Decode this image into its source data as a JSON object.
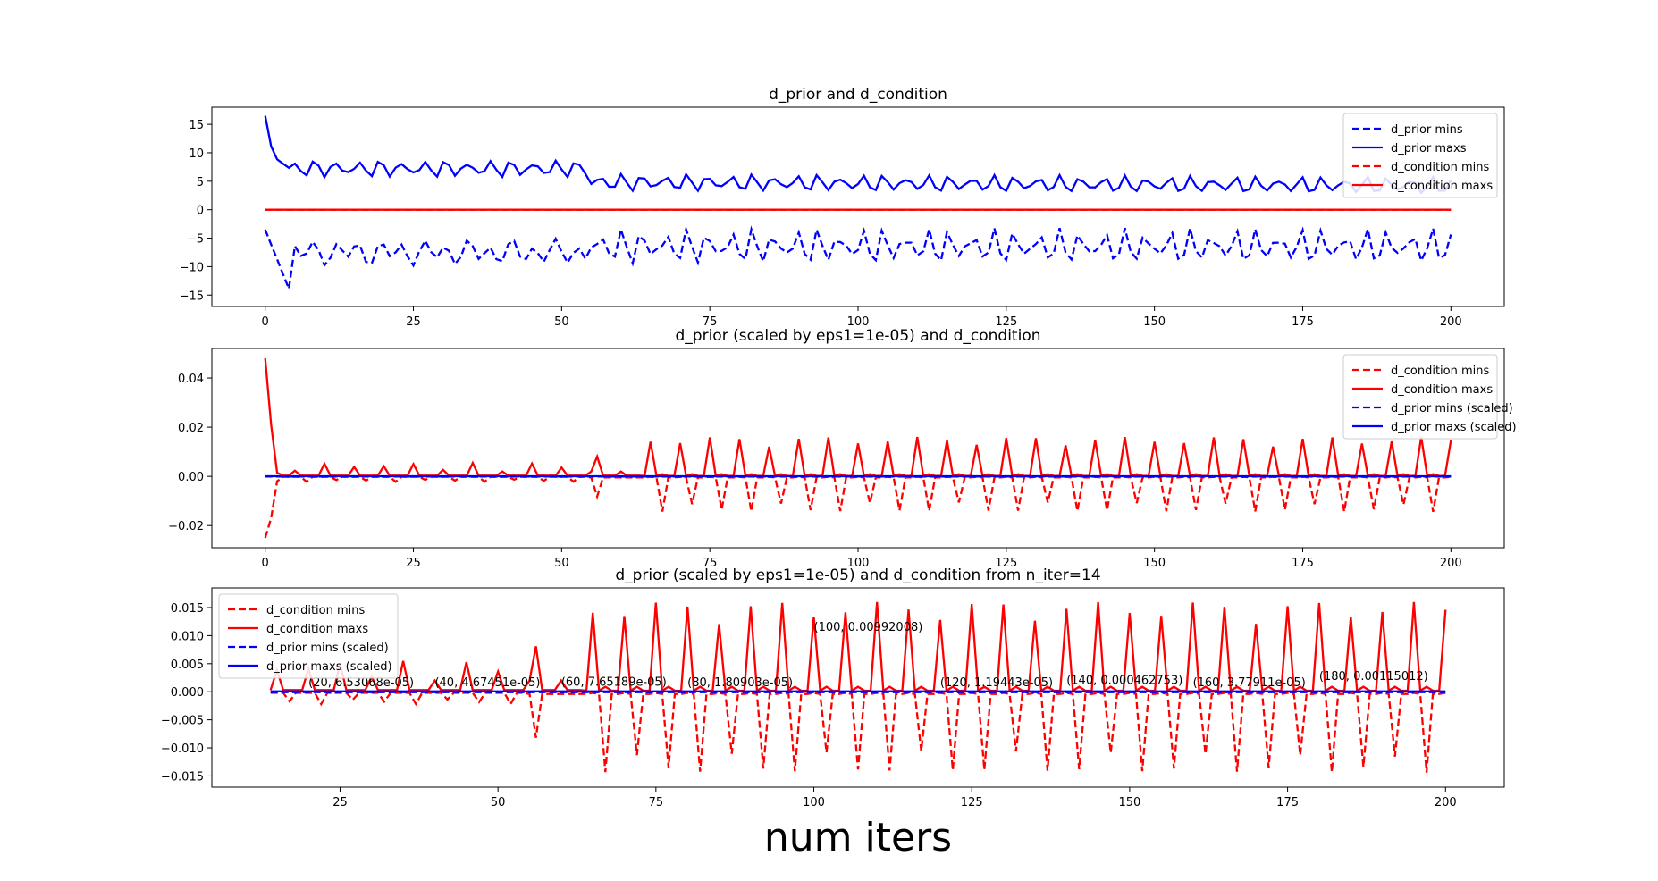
{
  "figure": {
    "xlabel": "num iters"
  },
  "chart_data": [
    {
      "type": "line",
      "title": "d_prior and d_condition",
      "xlim": [
        -9,
        209
      ],
      "ylim": [
        -17,
        18
      ],
      "xticks": [
        0,
        25,
        50,
        75,
        100,
        125,
        150,
        175,
        200
      ],
      "yticks": [
        -15,
        -10,
        -5,
        0,
        5,
        10,
        15
      ],
      "ytick_labels": [
        "−15",
        "−10",
        "−5",
        "0",
        "5",
        "10",
        "15"
      ],
      "legend": "upper-right",
      "series": [
        {
          "name": "d_prior mins",
          "color": "#0000ff",
          "dashed": true,
          "gen": "prior_min"
        },
        {
          "name": "d_prior maxs",
          "color": "#0000ff",
          "dashed": false,
          "gen": "prior_max"
        },
        {
          "name": "d_condition mins",
          "color": "#ff0000",
          "dashed": true,
          "gen": "zero"
        },
        {
          "name": "d_condition maxs",
          "color": "#ff0000",
          "dashed": false,
          "gen": "zero"
        }
      ],
      "annotations": []
    },
    {
      "type": "line",
      "title": "d_prior (scaled by eps1=1e-05) and d_condition",
      "xlim": [
        -9,
        209
      ],
      "ylim": [
        -0.029,
        0.052
      ],
      "xticks": [
        0,
        25,
        50,
        75,
        100,
        125,
        150,
        175,
        200
      ],
      "yticks": [
        -0.02,
        0.0,
        0.02,
        0.04
      ],
      "ytick_labels": [
        "−0.02",
        "0.00",
        "0.02",
        "0.04"
      ],
      "legend": "upper-right",
      "series": [
        {
          "name": "d_condition mins",
          "color": "#ff0000",
          "dashed": true,
          "gen": "cond_min"
        },
        {
          "name": "d_condition maxs",
          "color": "#ff0000",
          "dashed": false,
          "gen": "cond_max"
        },
        {
          "name": "d_prior mins (scaled)",
          "color": "#0000ff",
          "dashed": true,
          "gen": "prior_min_scaled"
        },
        {
          "name": "d_prior maxs (scaled)",
          "color": "#0000ff",
          "dashed": false,
          "gen": "prior_max_scaled"
        }
      ],
      "annotations": []
    },
    {
      "type": "line",
      "title": "d_prior (scaled by eps1=1e-05) and d_condition from n_iter=14",
      "xlim": [
        4.7,
        209.3
      ],
      "ylim": [
        -0.017,
        0.0185
      ],
      "xstart": 14,
      "xticks": [
        25,
        50,
        75,
        100,
        125,
        150,
        175,
        200
      ],
      "yticks": [
        -0.015,
        -0.01,
        -0.005,
        0.0,
        0.005,
        0.01,
        0.015
      ],
      "ytick_labels": [
        "−0.015",
        "−0.010",
        "−0.005",
        "0.000",
        "0.005",
        "0.010",
        "0.015"
      ],
      "legend": "upper-left",
      "series": [
        {
          "name": "d_condition mins",
          "color": "#ff0000",
          "dashed": true,
          "gen": "cond_min"
        },
        {
          "name": "d_condition maxs",
          "color": "#ff0000",
          "dashed": false,
          "gen": "cond_max"
        },
        {
          "name": "d_prior mins (scaled)",
          "color": "#0000ff",
          "dashed": true,
          "gen": "prior_min_scaled"
        },
        {
          "name": "d_prior maxs (scaled)",
          "color": "#0000ff",
          "dashed": false,
          "gen": "prior_max_scaled"
        }
      ],
      "annotations": [
        {
          "text": "(20, 6.53068e-05)",
          "x": 20,
          "y": 6.53e-05
        },
        {
          "text": "(40, 4.67451e-05)",
          "x": 40,
          "y": 4.67e-05
        },
        {
          "text": "(60, 7.65189e-05)",
          "x": 60,
          "y": 7.65e-05
        },
        {
          "text": "(80, 1.80903e-05)",
          "x": 80,
          "y": 1.81e-05
        },
        {
          "text": "(100, 0.00992008)",
          "x": 100,
          "y": 0.00992
        },
        {
          "text": "(120, 1.19443e-05)",
          "x": 120,
          "y": 1.19e-05
        },
        {
          "text": "(140, 0.000462753)",
          "x": 140,
          "y": 0.000463
        },
        {
          "text": "(160, 3.77911e-05)",
          "x": 160,
          "y": 3.78e-05
        },
        {
          "text": "(180, 0.00115012)",
          "x": 180,
          "y": 0.00115
        }
      ]
    }
  ]
}
